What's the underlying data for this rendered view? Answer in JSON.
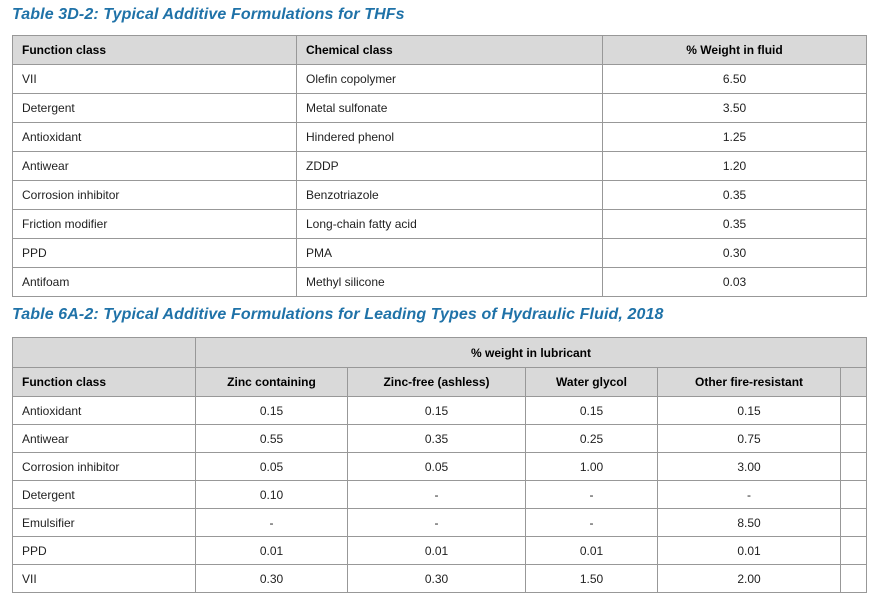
{
  "colors": {
    "title_blue": "#1f72a8",
    "header_bg": "#d9d9d9",
    "border": "#989898",
    "outer_border": "#7f7f7f",
    "body_text": "#1f1f1f",
    "page_bg": "#ffffff"
  },
  "table1": {
    "title": "Table 3D-2: Typical Additive Formulations for THFs",
    "columns": [
      "Function class",
      "Chemical class",
      "% Weight in fluid"
    ],
    "rows": [
      [
        "VII",
        "Olefin copolymer",
        "6.50"
      ],
      [
        "Detergent",
        "Metal sulfonate",
        "3.50"
      ],
      [
        "Antioxidant",
        "Hindered phenol",
        "1.25"
      ],
      [
        "Antiwear",
        "ZDDP",
        "1.20"
      ],
      [
        "Corrosion inhibitor",
        "Benzotriazole",
        "0.35"
      ],
      [
        "Friction modifier",
        "Long-chain fatty acid",
        "0.35"
      ],
      [
        "PPD",
        "PMA",
        "0.30"
      ],
      [
        "Antifoam",
        "Methyl silicone",
        "0.03"
      ]
    ]
  },
  "table2": {
    "title": "Table 6A-2: Typical Additive Formulations for Leading Types of Hydraulic Fluid, 2018",
    "span_header": "% weight in lubricant",
    "columns": [
      "Function class",
      "Zinc containing",
      "Zinc-free (ashless)",
      "Water glycol",
      "Other fire-resistant",
      ""
    ],
    "rows": [
      [
        "Antioxidant",
        "0.15",
        "0.15",
        "0.15",
        "0.15",
        ""
      ],
      [
        "Antiwear",
        "0.55",
        "0.35",
        "0.25",
        "0.75",
        ""
      ],
      [
        "Corrosion inhibitor",
        "0.05",
        "0.05",
        "1.00",
        "3.00",
        ""
      ],
      [
        "Detergent",
        "0.10",
        "-",
        "-",
        "-",
        ""
      ],
      [
        "Emulsifier",
        "-",
        "-",
        "-",
        "8.50",
        ""
      ],
      [
        "PPD",
        "0.01",
        "0.01",
        "0.01",
        "0.01",
        ""
      ],
      [
        "VII",
        "0.30",
        "0.30",
        "1.50",
        "2.00",
        ""
      ]
    ]
  }
}
